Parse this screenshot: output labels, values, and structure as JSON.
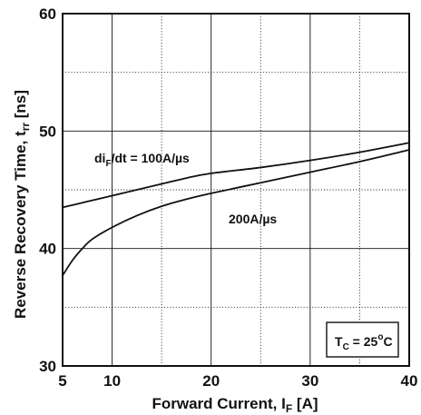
{
  "chart_data": {
    "type": "line",
    "xlabel": "Forward Current, I",
    "xlabel_sub": "F",
    "xlabel_unit": " [A]",
    "ylabel": "Reverse Recovery Time, t",
    "ylabel_sub": "rr",
    "ylabel_unit": " [ns]",
    "xlim": [
      5,
      40
    ],
    "ylim": [
      30,
      60
    ],
    "x_ticks": [
      5,
      10,
      20,
      30,
      40
    ],
    "x_tick_labels": [
      "5",
      "10",
      "20",
      "30",
      "40"
    ],
    "x_minor_dotted": [
      15,
      25,
      35
    ],
    "y_ticks": [
      30,
      40,
      50,
      60
    ],
    "y_tick_labels": [
      "30",
      "40",
      "50",
      "60"
    ],
    "y_minor_dotted": [
      35,
      45,
      55
    ],
    "grid": true,
    "series": [
      {
        "points": [
          [
            5,
            43.5
          ],
          [
            7.5,
            44.0
          ],
          [
            10,
            44.5
          ],
          [
            12.5,
            45.0
          ],
          [
            15,
            45.5
          ],
          [
            17.5,
            46.0
          ],
          [
            20,
            46.4
          ],
          [
            25,
            46.9
          ],
          [
            30,
            47.5
          ],
          [
            35,
            48.2
          ],
          [
            40,
            49.0
          ]
        ]
      },
      {
        "points": [
          [
            5,
            37.7
          ],
          [
            6,
            39.0
          ],
          [
            7,
            40.0
          ],
          [
            8,
            40.8
          ],
          [
            10,
            41.8
          ],
          [
            12.5,
            42.8
          ],
          [
            15,
            43.6
          ],
          [
            17.5,
            44.2
          ],
          [
            20,
            44.7
          ],
          [
            25,
            45.6
          ],
          [
            30,
            46.5
          ],
          [
            35,
            47.4
          ],
          [
            40,
            48.4
          ]
        ]
      }
    ],
    "annotations": {
      "didt_prefix": "di",
      "didt_sub": "F",
      "didt_suffix": "/dt = 100A/µs",
      "rate2": "200A/µs",
      "tc_main": "T",
      "tc_sub": "C",
      "tc_eq": " = 25",
      "tc_sup": "o",
      "tc_unit": "C"
    }
  }
}
